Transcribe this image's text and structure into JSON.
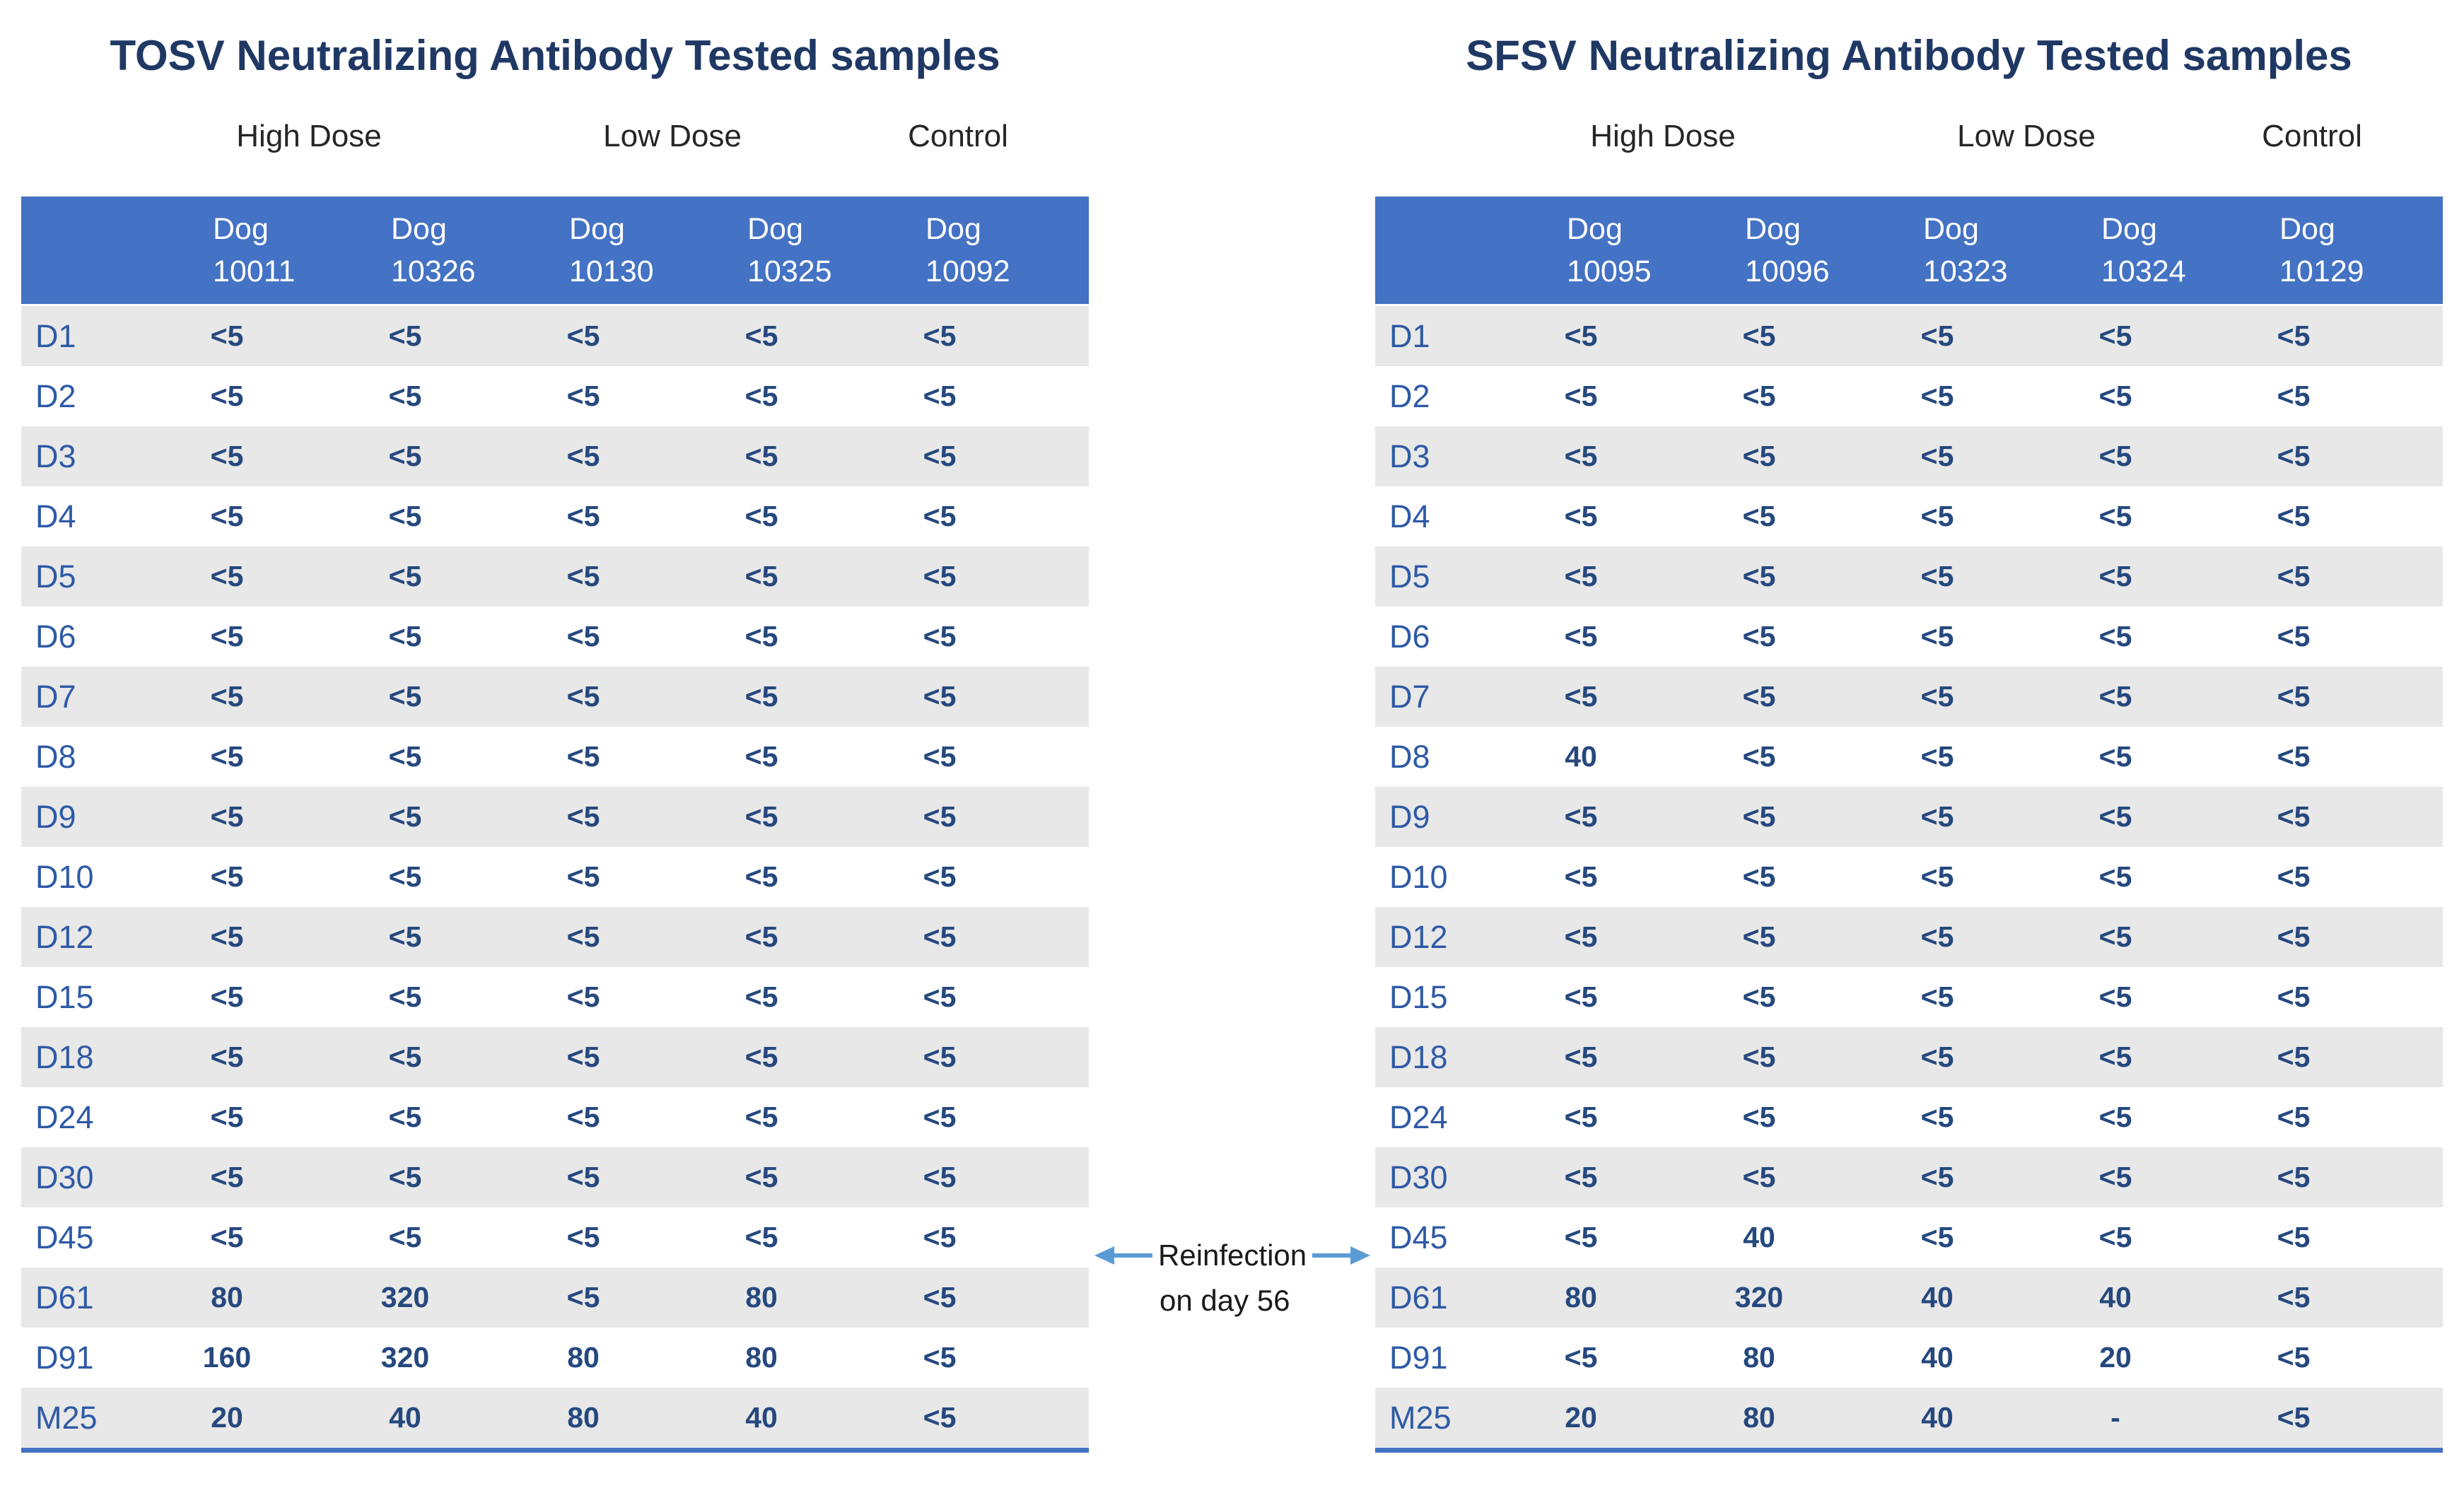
{
  "colors": {
    "header-bg": "#4472C4",
    "stripe-bg": "#E8E8E8",
    "title-color": "#1F3864",
    "label-color": "#2E5AA5",
    "value-color": "#25487E",
    "arrow-color": "#5B9BD5"
  },
  "annotation": {
    "line1": "Reinfection",
    "line2": "on day 56"
  },
  "tables": [
    {
      "id": "tosv",
      "title": "TOSV Neutralizing Antibody Tested samples",
      "groups": [
        "High Dose",
        "Low Dose",
        "Control"
      ],
      "dog_label": "Dog",
      "dog_ids": [
        "10011",
        "10326",
        "10130",
        "10325",
        "10092"
      ],
      "rows": [
        {
          "label": "D1",
          "values": [
            "<5",
            "<5",
            "<5",
            "<5",
            "<5"
          ]
        },
        {
          "label": "D2",
          "values": [
            "<5",
            "<5",
            "<5",
            "<5",
            "<5"
          ]
        },
        {
          "label": "D3",
          "values": [
            "<5",
            "<5",
            "<5",
            "<5",
            "<5"
          ]
        },
        {
          "label": "D4",
          "values": [
            "<5",
            "<5",
            "<5",
            "<5",
            "<5"
          ]
        },
        {
          "label": "D5",
          "values": [
            "<5",
            "<5",
            "<5",
            "<5",
            "<5"
          ]
        },
        {
          "label": "D6",
          "values": [
            "<5",
            "<5",
            "<5",
            "<5",
            "<5"
          ]
        },
        {
          "label": "D7",
          "values": [
            "<5",
            "<5",
            "<5",
            "<5",
            "<5"
          ]
        },
        {
          "label": "D8",
          "values": [
            "<5",
            "<5",
            "<5",
            "<5",
            "<5"
          ]
        },
        {
          "label": "D9",
          "values": [
            "<5",
            "<5",
            "<5",
            "<5",
            "<5"
          ]
        },
        {
          "label": "D10",
          "values": [
            "<5",
            "<5",
            "<5",
            "<5",
            "<5"
          ]
        },
        {
          "label": "D12",
          "values": [
            "<5",
            "<5",
            "<5",
            "<5",
            "<5"
          ]
        },
        {
          "label": "D15",
          "values": [
            "<5",
            "<5",
            "<5",
            "<5",
            "<5"
          ]
        },
        {
          "label": "D18",
          "values": [
            "<5",
            "<5",
            "<5",
            "<5",
            "<5"
          ]
        },
        {
          "label": "D24",
          "values": [
            "<5",
            "<5",
            "<5",
            "<5",
            "<5"
          ]
        },
        {
          "label": "D30",
          "values": [
            "<5",
            "<5",
            "<5",
            "<5",
            "<5"
          ]
        },
        {
          "label": "D45",
          "values": [
            "<5",
            "<5",
            "<5",
            "<5",
            "<5"
          ]
        },
        {
          "label": "D61",
          "values": [
            "80",
            "320",
            "<5",
            "80",
            "<5"
          ]
        },
        {
          "label": "D91",
          "values": [
            "160",
            "320",
            "80",
            "80",
            "<5"
          ]
        },
        {
          "label": "M25",
          "values": [
            "20",
            "40",
            "80",
            "40",
            "<5"
          ]
        }
      ]
    },
    {
      "id": "sfsv",
      "title": "SFSV Neutralizing Antibody Tested samples",
      "groups": [
        "High Dose",
        "Low Dose",
        "Control"
      ],
      "dog_label": "Dog",
      "dog_ids": [
        "10095",
        "10096",
        "10323",
        "10324",
        "10129"
      ],
      "rows": [
        {
          "label": "D1",
          "values": [
            "<5",
            "<5",
            "<5",
            "<5",
            "<5"
          ]
        },
        {
          "label": "D2",
          "values": [
            "<5",
            "<5",
            "<5",
            "<5",
            "<5"
          ]
        },
        {
          "label": "D3",
          "values": [
            "<5",
            "<5",
            "<5",
            "<5",
            "<5"
          ]
        },
        {
          "label": "D4",
          "values": [
            "<5",
            "<5",
            "<5",
            "<5",
            "<5"
          ]
        },
        {
          "label": "D5",
          "values": [
            "<5",
            "<5",
            "<5",
            "<5",
            "<5"
          ]
        },
        {
          "label": "D6",
          "values": [
            "<5",
            "<5",
            "<5",
            "<5",
            "<5"
          ]
        },
        {
          "label": "D7",
          "values": [
            "<5",
            "<5",
            "<5",
            "<5",
            "<5"
          ]
        },
        {
          "label": "D8",
          "values": [
            "40",
            "<5",
            "<5",
            "<5",
            "<5"
          ]
        },
        {
          "label": "D9",
          "values": [
            "<5",
            "<5",
            "<5",
            "<5",
            "<5"
          ]
        },
        {
          "label": "D10",
          "values": [
            "<5",
            "<5",
            "<5",
            "<5",
            "<5"
          ]
        },
        {
          "label": "D12",
          "values": [
            "<5",
            "<5",
            "<5",
            "<5",
            "<5"
          ]
        },
        {
          "label": "D15",
          "values": [
            "<5",
            "<5",
            "<5",
            "<5",
            "<5"
          ]
        },
        {
          "label": "D18",
          "values": [
            "<5",
            "<5",
            "<5",
            "<5",
            "<5"
          ]
        },
        {
          "label": "D24",
          "values": [
            "<5",
            "<5",
            "<5",
            "<5",
            "<5"
          ]
        },
        {
          "label": "D30",
          "values": [
            "<5",
            "<5",
            "<5",
            "<5",
            "<5"
          ]
        },
        {
          "label": "D45",
          "values": [
            "<5",
            "40",
            "<5",
            "<5",
            "<5"
          ]
        },
        {
          "label": "D61",
          "values": [
            "80",
            "320",
            "40",
            "40",
            "<5"
          ]
        },
        {
          "label": "D91",
          "values": [
            "<5",
            "80",
            "40",
            "20",
            "<5"
          ]
        },
        {
          "label": "M25",
          "values": [
            "20",
            "80",
            "40",
            "-",
            "<5"
          ]
        }
      ]
    }
  ]
}
